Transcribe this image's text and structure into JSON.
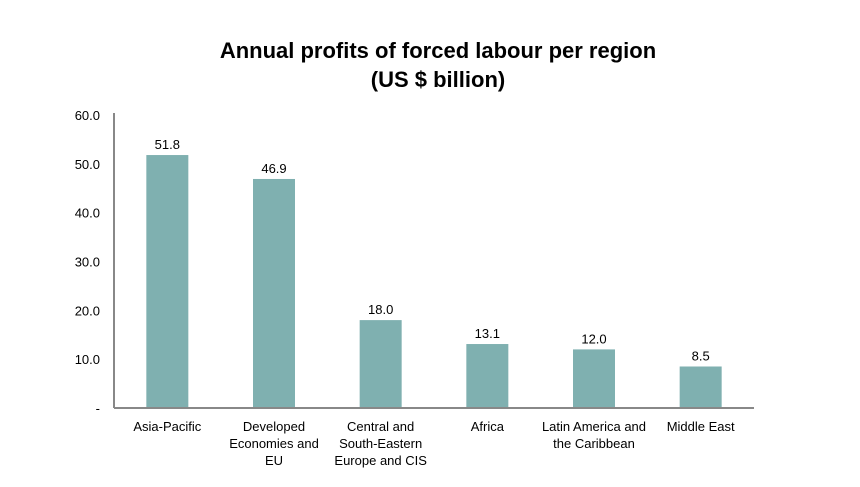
{
  "chart_data": {
    "type": "bar",
    "title_line1": "Annual profits of forced labour per region",
    "title_line2": "(US $ billion)",
    "categories": [
      [
        "Asia-Pacific"
      ],
      [
        "Developed",
        "Economies and",
        "EU"
      ],
      [
        "Central and",
        "South-Eastern",
        "Europe and CIS"
      ],
      [
        "Africa"
      ],
      [
        "Latin America and",
        "the Caribbean"
      ],
      [
        "Middle East"
      ]
    ],
    "values": [
      51.8,
      46.9,
      18.0,
      13.1,
      12.0,
      8.5
    ],
    "value_labels": [
      "51.8",
      "46.9",
      "18.0",
      "13.1",
      "12.0",
      "8.5"
    ],
    "ylim": [
      0,
      60
    ],
    "yticks": [
      "-",
      "10.0",
      "20.0",
      "30.0",
      "40.0",
      "50.0",
      "60.0"
    ],
    "xlabel": "",
    "ylabel": "",
    "grid": false,
    "legend": "none",
    "colors": {
      "bar": "#7FB0B0",
      "axis": "#888888"
    }
  }
}
